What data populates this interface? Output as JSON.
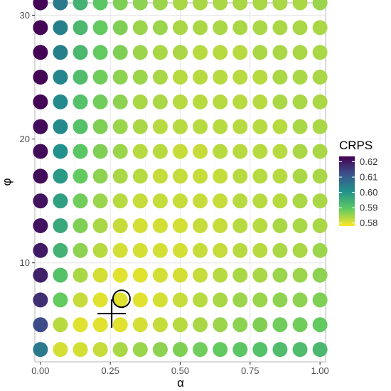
{
  "chart_data": {
    "type": "scatter",
    "title": "",
    "xlabel": "α",
    "ylabel": "φ",
    "xlim": [
      -0.02,
      1.02
    ],
    "ylim": [
      2,
      31
    ],
    "x_ticks": [
      {
        "value": 0.0,
        "label": "0.00"
      },
      {
        "value": 0.25,
        "label": "0.25"
      },
      {
        "value": 0.5,
        "label": "0.50"
      },
      {
        "value": 0.75,
        "label": "0.75"
      },
      {
        "value": 1.0,
        "label": "1.00"
      }
    ],
    "y_ticks": [
      {
        "value": 10,
        "label": "10"
      },
      {
        "value": 20,
        "label": "20"
      },
      {
        "value": 30,
        "label": "30"
      }
    ],
    "grid": true,
    "x": [
      0.0,
      0.0714,
      0.1429,
      0.2143,
      0.2857,
      0.3571,
      0.4286,
      0.5,
      0.5714,
      0.6429,
      0.7143,
      0.7857,
      0.8571,
      0.9286,
      1.0
    ],
    "y": [
      3,
      5,
      7,
      9,
      11,
      13,
      15,
      17,
      19,
      21,
      23,
      25,
      27,
      29,
      31
    ],
    "crps_grid": [
      [
        0.605,
        0.581,
        0.581,
        0.582,
        0.584,
        0.585,
        0.586,
        0.587,
        0.588,
        0.589,
        0.59,
        0.591,
        0.592,
        0.592,
        0.593
      ],
      [
        0.613,
        0.583,
        0.58,
        0.58,
        0.58,
        0.581,
        0.582,
        0.583,
        0.584,
        0.585,
        0.586,
        0.587,
        0.588,
        0.588,
        0.589
      ],
      [
        0.617,
        0.589,
        0.582,
        0.58,
        0.58,
        0.58,
        0.581,
        0.582,
        0.583,
        0.584,
        0.585,
        0.585,
        0.586,
        0.586,
        0.587
      ],
      [
        0.619,
        0.591,
        0.584,
        0.581,
        0.58,
        0.58,
        0.581,
        0.581,
        0.582,
        0.583,
        0.584,
        0.584,
        0.585,
        0.585,
        0.586
      ],
      [
        0.62,
        0.594,
        0.586,
        0.583,
        0.581,
        0.581,
        0.581,
        0.581,
        0.582,
        0.582,
        0.583,
        0.583,
        0.584,
        0.584,
        0.585
      ],
      [
        0.621,
        0.596,
        0.587,
        0.584,
        0.582,
        0.581,
        0.581,
        0.581,
        0.582,
        0.582,
        0.583,
        0.583,
        0.584,
        0.584,
        0.584
      ],
      [
        0.621,
        0.598,
        0.588,
        0.585,
        0.583,
        0.582,
        0.582,
        0.582,
        0.582,
        0.582,
        0.583,
        0.583,
        0.583,
        0.584,
        0.584
      ],
      [
        0.622,
        0.599,
        0.589,
        0.586,
        0.584,
        0.583,
        0.582,
        0.582,
        0.582,
        0.582,
        0.583,
        0.583,
        0.583,
        0.584,
        0.584
      ],
      [
        0.622,
        0.601,
        0.59,
        0.587,
        0.585,
        0.583,
        0.583,
        0.582,
        0.582,
        0.583,
        0.583,
        0.583,
        0.583,
        0.584,
        0.584
      ],
      [
        0.622,
        0.602,
        0.591,
        0.587,
        0.585,
        0.584,
        0.583,
        0.583,
        0.583,
        0.583,
        0.583,
        0.583,
        0.583,
        0.584,
        0.584
      ],
      [
        0.623,
        0.602,
        0.591,
        0.588,
        0.586,
        0.584,
        0.584,
        0.583,
        0.583,
        0.583,
        0.583,
        0.583,
        0.584,
        0.584,
        0.584
      ],
      [
        0.623,
        0.603,
        0.592,
        0.588,
        0.586,
        0.585,
        0.584,
        0.583,
        0.583,
        0.583,
        0.583,
        0.583,
        0.584,
        0.584,
        0.584
      ],
      [
        0.623,
        0.604,
        0.593,
        0.589,
        0.587,
        0.585,
        0.584,
        0.584,
        0.583,
        0.583,
        0.583,
        0.584,
        0.584,
        0.584,
        0.584
      ],
      [
        0.623,
        0.604,
        0.593,
        0.589,
        0.587,
        0.585,
        0.585,
        0.584,
        0.584,
        0.584,
        0.584,
        0.584,
        0.584,
        0.584,
        0.584
      ],
      [
        0.623,
        0.605,
        0.594,
        0.59,
        0.587,
        0.586,
        0.585,
        0.584,
        0.584,
        0.584,
        0.584,
        0.584,
        0.584,
        0.584,
        0.585
      ]
    ],
    "colorbar": {
      "title": "CRPS",
      "min": 0.578,
      "max": 0.6235,
      "ticks": [
        {
          "value": 0.62,
          "label": "0.62"
        },
        {
          "value": 0.61,
          "label": "0.61"
        },
        {
          "value": 0.6,
          "label": "0.60"
        },
        {
          "value": 0.59,
          "label": "0.59"
        },
        {
          "value": 0.58,
          "label": "0.58"
        }
      ],
      "palette": [
        "#440154",
        "#3b528b",
        "#21918c",
        "#5ec962",
        "#fde725"
      ],
      "placement": "right"
    },
    "markers": [
      {
        "shape": "open-circle",
        "x": 0.29,
        "y": 7.1
      },
      {
        "shape": "plus",
        "x": 0.255,
        "y": 5.9
      }
    ]
  }
}
